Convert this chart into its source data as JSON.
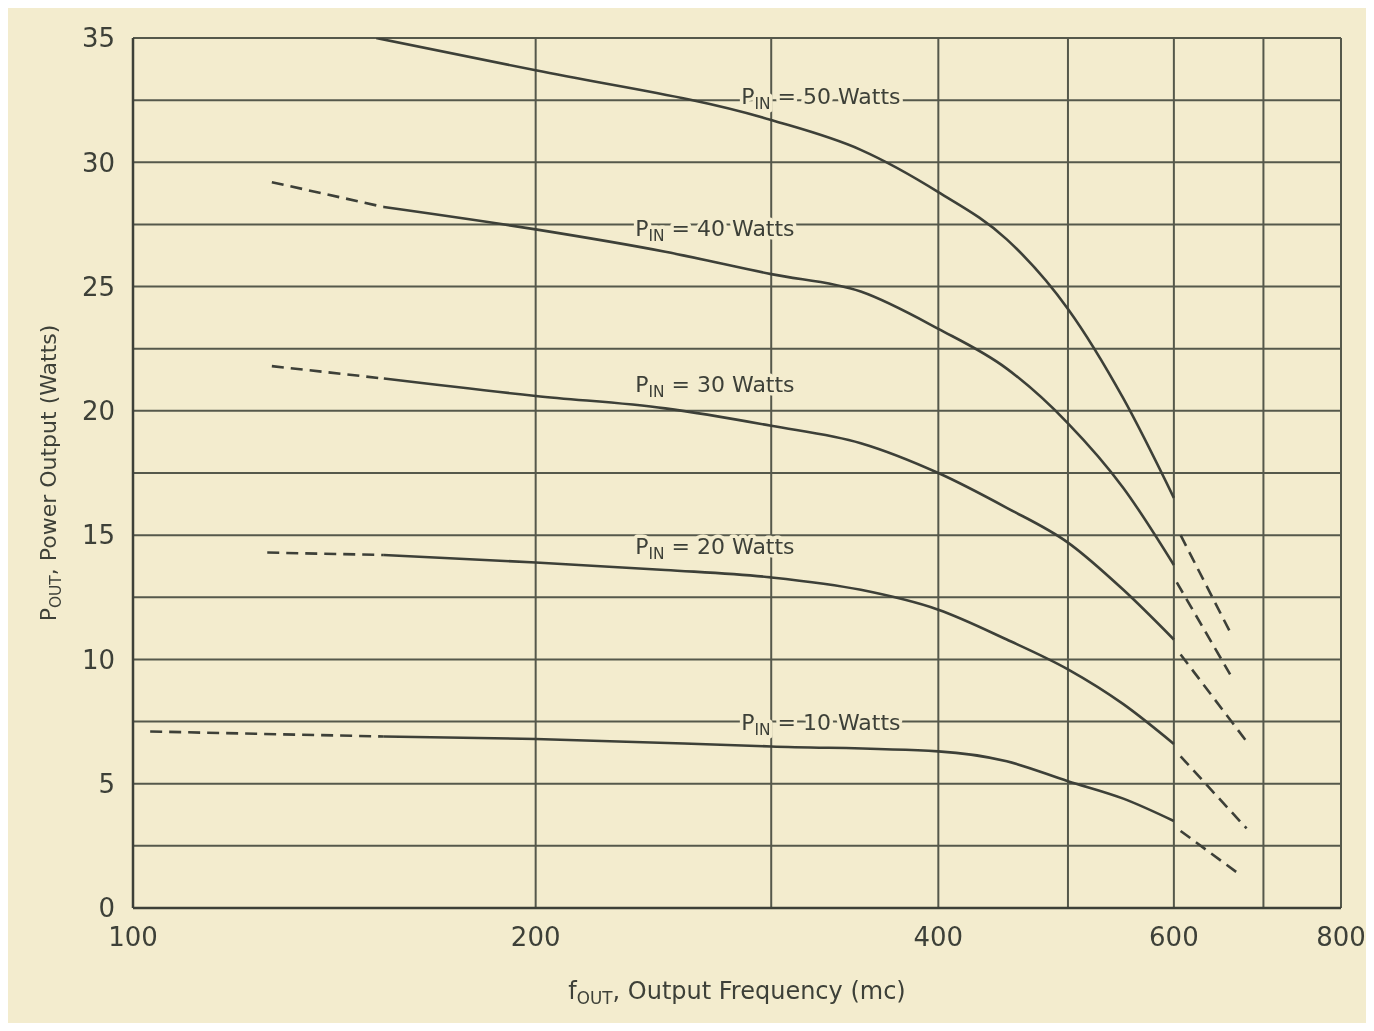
{
  "chart_data": {
    "type": "line",
    "xlabel": "f$_{OUT}$, Output Frequency (mc)",
    "ylabel": "P$_{OUT}$, Power Output (Watts)",
    "log": "x",
    "xlim": [
      100,
      800
    ],
    "xticks": [
      100,
      200,
      {
        "value": 300,
        "label": null
      },
      400,
      {
        "value": 500,
        "label": null
      },
      600,
      {
        "value": 700,
        "label": null
      },
      800
    ],
    "ylim": [
      0,
      35
    ],
    "yticks": [
      0,
      {
        "value": 2.5,
        "label": null
      },
      5,
      {
        "value": 7.5,
        "label": null
      },
      10,
      {
        "value": 12.5,
        "label": null
      },
      15,
      {
        "value": 17.5,
        "label": null
      },
      20,
      {
        "value": 22.5,
        "label": null
      },
      25,
      {
        "value": 27.5,
        "label": null
      },
      30,
      {
        "value": 32.5,
        "label": null
      },
      35
    ],
    "grid": true,
    "marker": "none",
    "line_style": "solid",
    "series": [
      {
        "name": "P$_{IN}$ = 50 Watts",
        "color": "#3d4038",
        "x": [
          152,
          200,
          300,
          350,
          400,
          450,
          500,
          550,
          600
        ],
        "values": [
          35,
          33.7,
          31.7,
          30.5,
          28.8,
          26.9,
          24.1,
          20.5,
          16.5
        ]
      },
      {
        "color": "#3d4038",
        "line_style": "dashed",
        "x": [
          607,
          661
        ],
        "values": [
          15.0,
          11.1
        ]
      },
      {
        "name": "P$_{IN}$ = 40 Watts",
        "color": "#3d4038",
        "x": [
          154,
          200,
          250,
          300,
          350,
          400,
          450,
          500,
          550,
          600
        ],
        "values": [
          28.2,
          27.3,
          26.4,
          25.5,
          24.8,
          23.3,
          21.7,
          19.5,
          16.9,
          13.8
        ]
      },
      {
        "color": "#3d4038",
        "line_style": "dashed",
        "x": [
          127,
          154
        ],
        "values": [
          29.2,
          28.2
        ]
      },
      {
        "color": "#3d4038",
        "line_style": "dashed",
        "x": [
          603,
          661
        ],
        "values": [
          13.1,
          9.4
        ]
      },
      {
        "name": "P$_{IN}$ = 30 Watts",
        "color": "#3d4038",
        "x": [
          154,
          200,
          250,
          300,
          350,
          400,
          450,
          500,
          550,
          600
        ],
        "values": [
          21.3,
          20.6,
          20.1,
          19.4,
          18.7,
          17.5,
          16.1,
          14.7,
          12.8,
          10.8
        ]
      },
      {
        "color": "#3d4038",
        "line_style": "dashed",
        "x": [
          127,
          154
        ],
        "values": [
          21.8,
          21.3
        ]
      },
      {
        "color": "#3d4038",
        "line_style": "dashed",
        "x": [
          607,
          680
        ],
        "values": [
          10.2,
          6.7
        ]
      },
      {
        "name": "P$_{IN}$ = 20 Watts",
        "color": "#3d4038",
        "x": [
          154,
          200,
          250,
          300,
          350,
          400,
          450,
          500,
          550,
          600
        ],
        "values": [
          14.2,
          13.9,
          13.6,
          13.3,
          12.8,
          12.0,
          10.8,
          9.6,
          8.2,
          6.6
        ]
      },
      {
        "color": "#3d4038",
        "line_style": "dashed",
        "x": [
          126,
          154
        ],
        "values": [
          14.3,
          14.2
        ]
      },
      {
        "color": "#3d4038",
        "line_style": "dashed",
        "x": [
          607,
          680
        ],
        "values": [
          6.1,
          3.2
        ]
      },
      {
        "name": "P$_{IN}$ = 10 Watts",
        "color": "#3d4038",
        "x": [
          154,
          200,
          300,
          400,
          450,
          500,
          550,
          600
        ],
        "values": [
          6.9,
          6.8,
          6.5,
          6.3,
          5.9,
          5.1,
          4.4,
          3.5
        ]
      },
      {
        "color": "#3d4038",
        "line_style": "dashed",
        "x": [
          103,
          154
        ],
        "values": [
          7.1,
          6.9
        ]
      },
      {
        "color": "#3d4038",
        "line_style": "dashed",
        "x": [
          607,
          670
        ],
        "values": [
          3.1,
          1.4
        ]
      }
    ]
  }
}
